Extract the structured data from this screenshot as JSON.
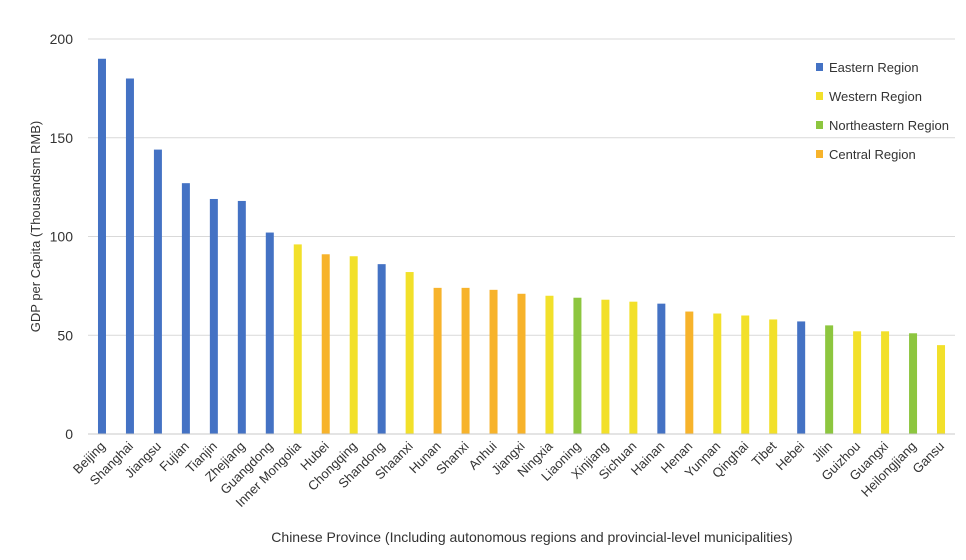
{
  "chart_data": {
    "type": "bar",
    "xlabel": "Chinese Province (Including autonomous regions and provincial-level municipalities)",
    "ylabel": "GDP per Capita (Thousandsm RMB)",
    "ylim": [
      0,
      200
    ],
    "yticks": [
      0,
      50,
      100,
      150,
      200
    ],
    "grid": true,
    "legend_position": "top-right",
    "regions": [
      {
        "name": "Eastern Region",
        "color": "#4472C4"
      },
      {
        "name": "Western Region",
        "color": "#F2E02A"
      },
      {
        "name": "Northeastern Region",
        "color": "#8DC63F"
      },
      {
        "name": "Central Region",
        "color": "#F7B32B"
      }
    ],
    "categories": [
      "Beijing",
      "Shanghai",
      "Jiangsu",
      "Fujian",
      "Tianjin",
      "Zhejiang",
      "Guangdong",
      "Inner Mongolia",
      "Hubei",
      "Chongqing",
      "Shandong",
      "Shaanxi",
      "Hunan",
      "Shanxi",
      "Anhui",
      "Jiangxi",
      "Ningxia",
      "Liaoning",
      "Xinjiang",
      "Sichuan",
      "Hainan",
      "Henan",
      "Yunnan",
      "Qinghai",
      "Tibet",
      "Hebei",
      "Jilin",
      "Guizhou",
      "Guangxi",
      "Heilongjiang",
      "Gansu"
    ],
    "values": [
      190,
      180,
      144,
      127,
      119,
      118,
      102,
      96,
      91,
      90,
      86,
      82,
      74,
      74,
      73,
      71,
      70,
      69,
      68,
      67,
      66,
      62,
      61,
      60,
      58,
      57,
      55,
      52,
      52,
      51,
      45
    ],
    "bar_region": [
      0,
      0,
      0,
      0,
      0,
      0,
      0,
      1,
      3,
      1,
      0,
      1,
      3,
      3,
      3,
      3,
      1,
      2,
      1,
      1,
      0,
      3,
      1,
      1,
      1,
      0,
      2,
      1,
      1,
      2,
      1
    ]
  }
}
